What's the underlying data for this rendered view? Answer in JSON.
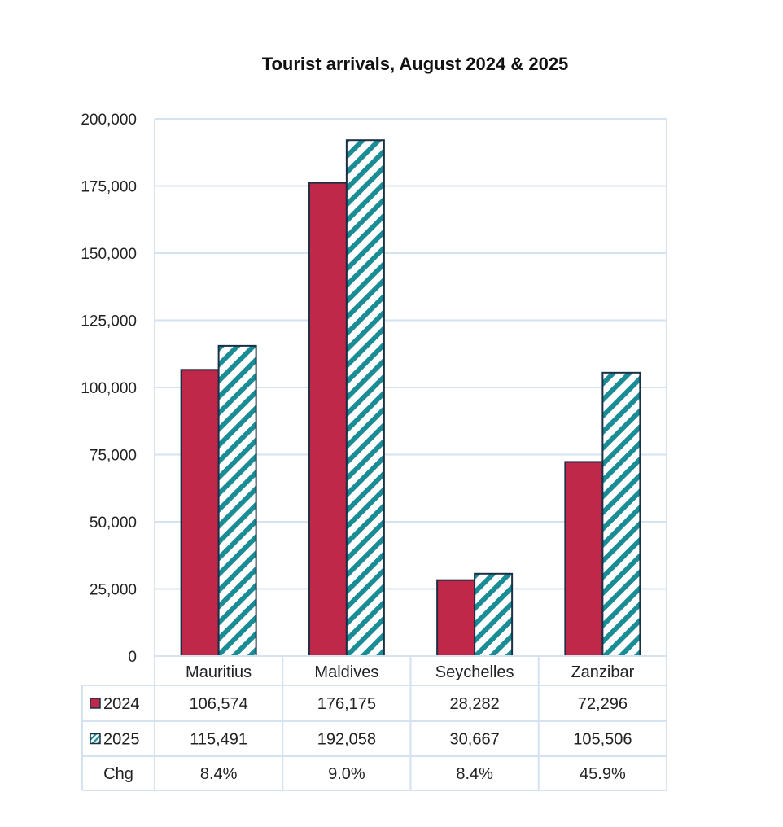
{
  "chart_data": {
    "type": "bar",
    "title": "Tourist arrivals, August 2024 & 2025",
    "categories": [
      "Mauritius",
      "Maldives",
      "Seychelles",
      "Zanzibar"
    ],
    "series": [
      {
        "name": "2024",
        "values": [
          106574,
          176175,
          28282,
          72296
        ],
        "color": "#C0284A",
        "pattern": "solid"
      },
      {
        "name": "2025",
        "values": [
          115491,
          192058,
          30667,
          105506
        ],
        "color": "#1A8C95",
        "pattern": "diagonal-stripes"
      }
    ],
    "ylim": [
      0,
      200000
    ],
    "yticks": [
      "0",
      "25,000",
      "50,000",
      "75,000",
      "100,000",
      "125,000",
      "150,000",
      "175,000",
      "200,000"
    ],
    "grid": true,
    "data_table": {
      "rows": [
        {
          "label": "2024",
          "cells": [
            "106,574",
            "176,175",
            "28,282",
            "72,296"
          ]
        },
        {
          "label": "2025",
          "cells": [
            "115,491",
            "192,058",
            "30,667",
            "105,506"
          ]
        },
        {
          "label": "Chg",
          "cells": [
            "8.4%",
            "9.0%",
            "8.4%",
            "45.9%"
          ]
        }
      ]
    },
    "colors": {
      "grid": "#D5E2F0",
      "bar_outline": "#1B2F45"
    }
  }
}
